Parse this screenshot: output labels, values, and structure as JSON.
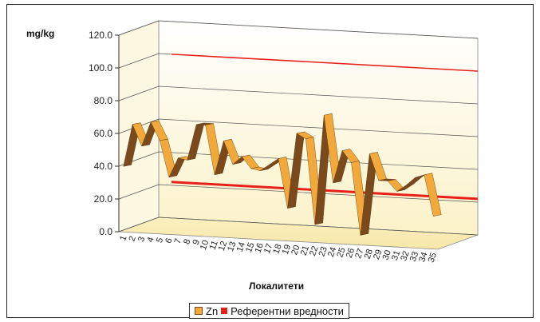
{
  "chart_data": {
    "type": "line",
    "y_unit_label": "mg/kg",
    "xlabel": "Локалитети",
    "ylim": [
      0,
      120
    ],
    "y_ticks": [
      "0.0",
      "20.0",
      "40.0",
      "60.0",
      "80.0",
      "100.0",
      "120.0"
    ],
    "categories": [
      "1",
      "2",
      "3",
      "4",
      "5",
      "6",
      "7",
      "8",
      "9",
      "10",
      "11",
      "12",
      "13",
      "14",
      "15",
      "16",
      "17",
      "18",
      "19",
      "20",
      "21",
      "22",
      "23",
      "24",
      "25",
      "26",
      "27",
      "28",
      "29",
      "30",
      "31",
      "32",
      "33",
      "34",
      "35"
    ],
    "series": [
      {
        "name": "Zn",
        "color": "#f2a93b",
        "side_color": "#7a4a1c",
        "values": [
          40,
          66,
          53,
          68,
          57,
          35,
          47,
          46,
          68,
          68,
          38,
          59,
          45,
          50,
          43,
          42,
          46,
          50,
          20,
          66,
          63,
          11,
          78,
          37,
          57,
          50,
          6,
          56,
          40,
          40,
          34,
          38,
          43,
          45,
          20
        ]
      },
      {
        "name": "Референтни вредности",
        "color": "#e8201a",
        "lines": [
          {
            "label": "upper",
            "values_start_end": [
              100,
              100
            ]
          },
          {
            "label": "lower",
            "values_start_end": [
              22,
              22
            ]
          }
        ]
      }
    ],
    "legend_position": "bottom",
    "grid": true
  },
  "legend": {
    "zn_label": "Zn",
    "ref_label": "Референтни вредности"
  }
}
